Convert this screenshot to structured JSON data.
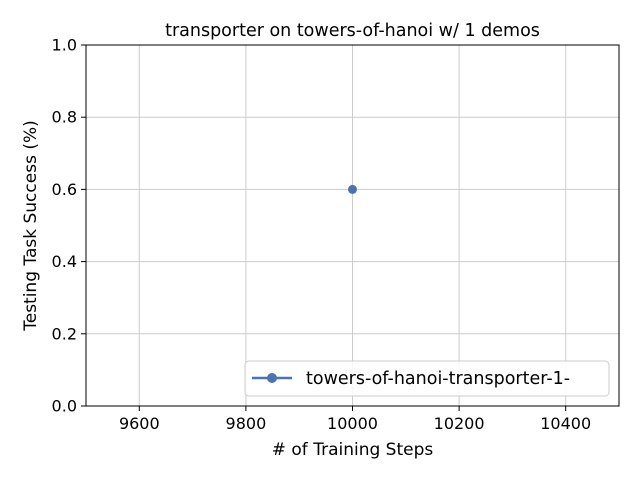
{
  "chart_data": {
    "type": "line",
    "title": "transporter on towers-of-hanoi w/ 1 demos",
    "xlabel": "# of Training Steps",
    "ylabel": "Testing Task Success (%)",
    "xlim": [
      9500,
      10500
    ],
    "ylim": [
      0.0,
      1.0
    ],
    "xticks": [
      9600,
      9800,
      10000,
      10200,
      10400
    ],
    "yticks": [
      0.0,
      0.2,
      0.4,
      0.6,
      0.8,
      1.0
    ],
    "xtick_labels": [
      "9600",
      "9800",
      "10000",
      "10200",
      "10400"
    ],
    "ytick_labels": [
      "0.0",
      "0.2",
      "0.4",
      "0.6",
      "0.8",
      "1.0"
    ],
    "grid": true,
    "legend_position": "lower-right",
    "series": [
      {
        "name": "towers-of-hanoi-transporter-1-",
        "color": "#4c72b0",
        "marker": "circle",
        "x": [
          10000
        ],
        "y": [
          0.6
        ]
      }
    ]
  }
}
